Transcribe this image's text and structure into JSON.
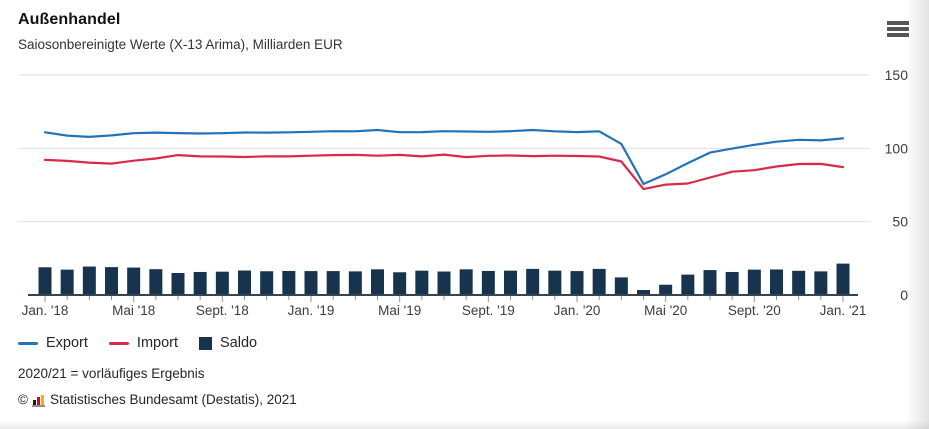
{
  "header": {
    "title": "Außenhandel",
    "subtitle": "Saiosonbereinigte Werte (X-13 Arima), Milliarden EUR"
  },
  "legend": {
    "export_label": "Export",
    "import_label": "Import",
    "saldo_label": "Saldo"
  },
  "footnotes": {
    "note": "2020/21 = vorläufiges Ergebnis",
    "copyright_symbol": "©",
    "source": "Statistisches Bundesamt (Destatis), 2021"
  },
  "colors": {
    "export": "#2373b8",
    "import": "#d8294a",
    "saldo": "#17344e",
    "grid": "#e0e0e0",
    "axis": "#3a434c",
    "tick": "#949494",
    "axis_label": "#3d3d3d",
    "logo_black": "#1a1a1a",
    "logo_red": "#e10019",
    "logo_gold": "#f0b400"
  },
  "chart_data": {
    "type": "line-bar-combo",
    "title": "Außenhandel",
    "subtitle": "Saiosonbereinigte Werte (X-13 Arima), Milliarden EUR",
    "unit": "Milliarden EUR",
    "n_points": 37,
    "x_range_months": [
      "Jan. '18",
      "Jan. '21"
    ],
    "x_ticks": [
      {
        "index": 0,
        "label": "Jan. '18"
      },
      {
        "index": 4,
        "label": "Mai '18"
      },
      {
        "index": 8,
        "label": "Sept. '18"
      },
      {
        "index": 12,
        "label": "Jan. '19"
      },
      {
        "index": 16,
        "label": "Mai '19"
      },
      {
        "index": 20,
        "label": "Sept. '19"
      },
      {
        "index": 24,
        "label": "Jan. '20"
      },
      {
        "index": 28,
        "label": "Mai '20"
      },
      {
        "index": 32,
        "label": "Sept. '20"
      },
      {
        "index": 36,
        "label": "Jan. '21"
      }
    ],
    "ylim": [
      0,
      150
    ],
    "yticks": [
      0,
      50,
      100,
      150
    ],
    "grid": "horizontal",
    "legend_position": "bottom-left",
    "series": [
      {
        "name": "Export",
        "type": "line",
        "color": "#2373b8",
        "values": [
          110.9,
          108.7,
          107.8,
          108.8,
          110.3,
          110.7,
          110.4,
          110.1,
          110.3,
          110.8,
          110.7,
          110.9,
          111.3,
          111.7,
          111.6,
          112.5,
          111.0,
          111.1,
          111.7,
          111.5,
          111.3,
          111.7,
          112.5,
          111.6,
          111.1,
          111.6,
          103.0,
          75.7,
          82.3,
          89.9,
          97.1,
          99.8,
          102.4,
          104.5,
          105.8,
          105.4,
          106.8
        ]
      },
      {
        "name": "Import",
        "type": "line",
        "color": "#d8294a",
        "values": [
          92.1,
          91.4,
          90.3,
          89.6,
          91.6,
          93.1,
          95.4,
          94.5,
          94.4,
          94.1,
          94.6,
          94.5,
          95.0,
          95.4,
          95.5,
          95.0,
          95.5,
          94.5,
          95.7,
          94.0,
          94.9,
          95.1,
          94.7,
          95.0,
          94.8,
          94.4,
          91.0,
          72.2,
          75.3,
          76.0,
          80.1,
          84.1,
          85.1,
          87.6,
          89.3,
          89.4,
          87.2
        ]
      },
      {
        "name": "Saldo",
        "type": "bar",
        "color": "#17344e",
        "values": [
          18.9,
          17.3,
          19.4,
          19.0,
          18.7,
          17.6,
          15.0,
          15.7,
          15.9,
          16.7,
          16.2,
          16.4,
          16.3,
          16.3,
          16.1,
          17.5,
          15.5,
          16.6,
          16.0,
          17.5,
          16.4,
          16.6,
          17.8,
          16.6,
          16.3,
          17.8,
          12.0,
          3.4,
          7.0,
          13.9,
          17.0,
          15.7,
          17.3,
          17.4,
          16.5,
          16.1,
          21.4
        ]
      }
    ]
  }
}
